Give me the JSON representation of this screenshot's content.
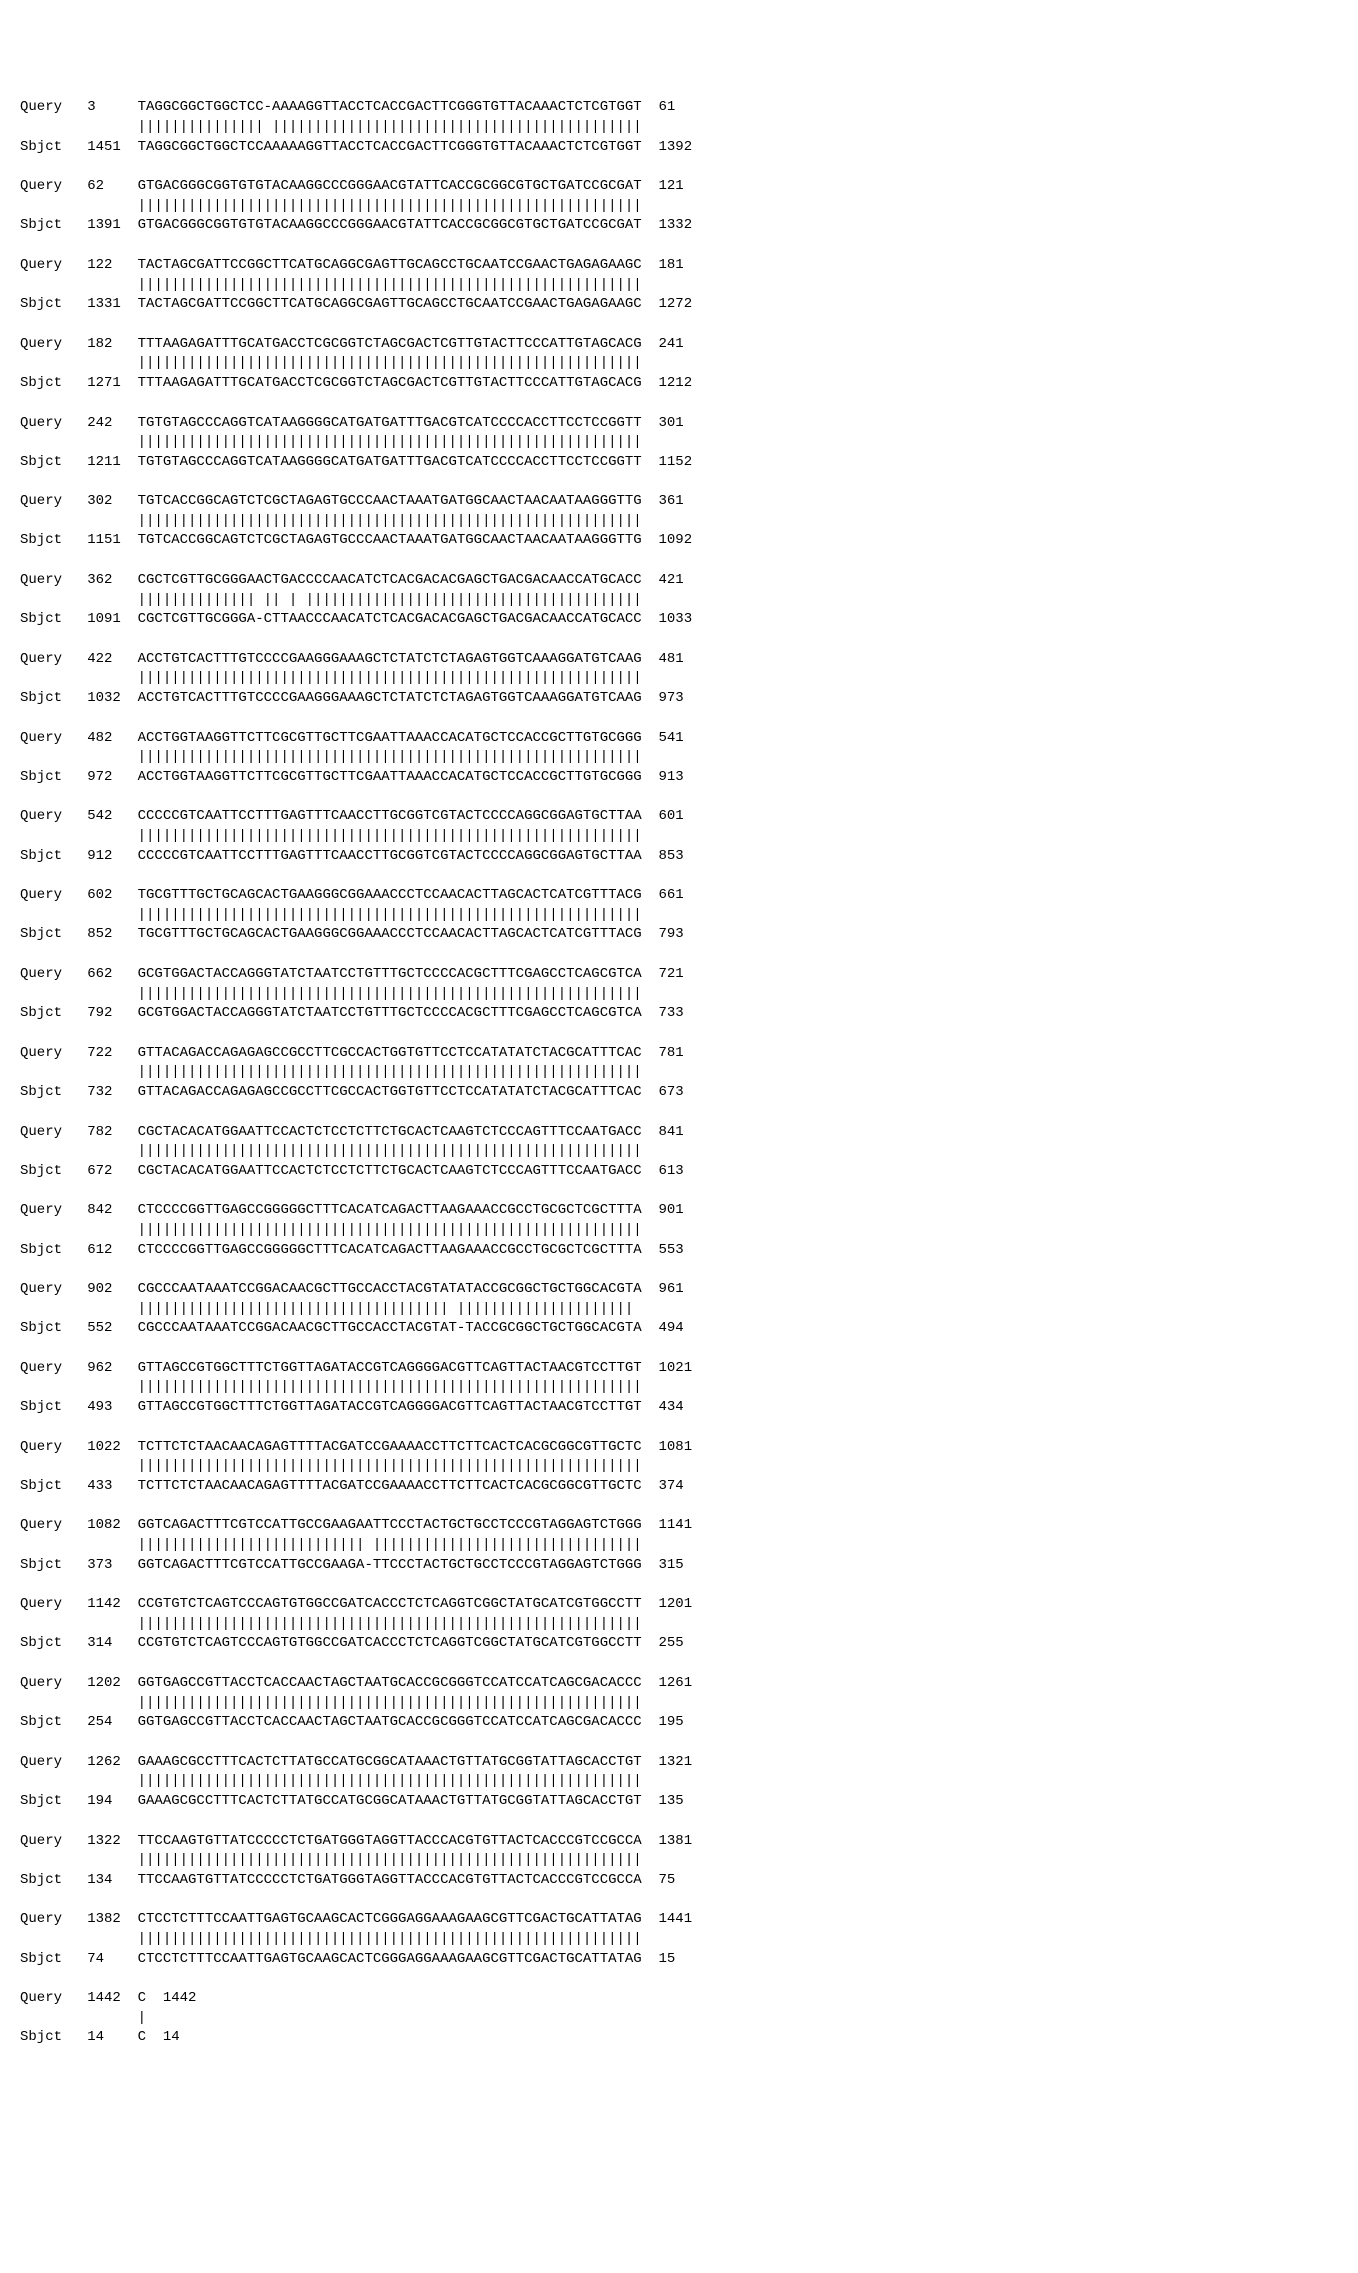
{
  "labels": {
    "query": "Query",
    "sbjct": "Sbjct"
  },
  "blocks": [
    {
      "query_start": 3,
      "query_seq": "TAGGCGGCTGGCTCC-AAAAGGTTACCTCACCGACTTCGGGTGTTACAAACTCTCGTGGT",
      "match": "||||||||||||||| ||||||||||||||||||||||||||||||||||||||||||||",
      "sbjct_seq": "TAGGCGGCTGGCTCCAAAAAGGTTACCTCACCGACTTCGGGTGTTACAAACTCTCGTGGT",
      "query_end": 61,
      "sbjct_start": 1451,
      "sbjct_end": 1392
    },
    {
      "query_start": 62,
      "query_seq": "GTGACGGGCGGTGTGTACAAGGCCCGGGAACGTATTCACCGCGGCGTGCTGATCCGCGAT",
      "match": "||||||||||||||||||||||||||||||||||||||||||||||||||||||||||||",
      "sbjct_seq": "GTGACGGGCGGTGTGTACAAGGCCCGGGAACGTATTCACCGCGGCGTGCTGATCCGCGAT",
      "query_end": 121,
      "sbjct_start": 1391,
      "sbjct_end": 1332
    },
    {
      "query_start": 122,
      "query_seq": "TACTAGCGATTCCGGCTTCATGCAGGCGAGTTGCAGCCTGCAATCCGAACTGAGAGAAGC",
      "match": "||||||||||||||||||||||||||||||||||||||||||||||||||||||||||||",
      "sbjct_seq": "TACTAGCGATTCCGGCTTCATGCAGGCGAGTTGCAGCCTGCAATCCGAACTGAGAGAAGC",
      "query_end": 181,
      "sbjct_start": 1331,
      "sbjct_end": 1272
    },
    {
      "query_start": 182,
      "query_seq": "TTTAAGAGATTTGCATGACCTCGCGGTCTAGCGACTCGTTGTACTTCCCATTGTAGCACG",
      "match": "||||||||||||||||||||||||||||||||||||||||||||||||||||||||||||",
      "sbjct_seq": "TTTAAGAGATTTGCATGACCTCGCGGTCTAGCGACTCGTTGTACTTCCCATTGTAGCACG",
      "query_end": 241,
      "sbjct_start": 1271,
      "sbjct_end": 1212
    },
    {
      "query_start": 242,
      "query_seq": "TGTGTAGCCCAGGTCATAAGGGGCATGATGATTTGACGTCATCCCCACCTTCCTCCGGTT",
      "match": "||||||||||||||||||||||||||||||||||||||||||||||||||||||||||||",
      "sbjct_seq": "TGTGTAGCCCAGGTCATAAGGGGCATGATGATTTGACGTCATCCCCACCTTCCTCCGGTT",
      "query_end": 301,
      "sbjct_start": 1211,
      "sbjct_end": 1152
    },
    {
      "query_start": 302,
      "query_seq": "TGTCACCGGCAGTCTCGCTAGAGTGCCCAACTAAATGATGGCAACTAACAATAAGGGTTG",
      "match": "||||||||||||||||||||||||||||||||||||||||||||||||||||||||||||",
      "sbjct_seq": "TGTCACCGGCAGTCTCGCTAGAGTGCCCAACTAAATGATGGCAACTAACAATAAGGGTTG",
      "query_end": 361,
      "sbjct_start": 1151,
      "sbjct_end": 1092
    },
    {
      "query_start": 362,
      "query_seq": "CGCTCGTTGCGGGAACTGACCCCAACATCTCACGACACGAGCTGACGACAACCATGCACC",
      "match": "|||||||||||||| || | ||||||||||||||||||||||||||||||||||||||||",
      "sbjct_seq": "CGCTCGTTGCGGGA-CTTAACCCAACATCTCACGACACGAGCTGACGACAACCATGCACC",
      "query_end": 421,
      "sbjct_start": 1091,
      "sbjct_end": 1033
    },
    {
      "query_start": 422,
      "query_seq": "ACCTGTCACTTTGTCCCCGAAGGGAAAGCTCTATCTCTAGAGTGGTCAAAGGATGTCAAG",
      "match": "||||||||||||||||||||||||||||||||||||||||||||||||||||||||||||",
      "sbjct_seq": "ACCTGTCACTTTGTCCCCGAAGGGAAAGCTCTATCTCTAGAGTGGTCAAAGGATGTCAAG",
      "query_end": 481,
      "sbjct_start": 1032,
      "sbjct_end": 973
    },
    {
      "query_start": 482,
      "query_seq": "ACCTGGTAAGGTTCTTCGCGTTGCTTCGAATTAAACCACATGCTCCACCGCTTGTGCGGG",
      "match": "||||||||||||||||||||||||||||||||||||||||||||||||||||||||||||",
      "sbjct_seq": "ACCTGGTAAGGTTCTTCGCGTTGCTTCGAATTAAACCACATGCTCCACCGCTTGTGCGGG",
      "query_end": 541,
      "sbjct_start": 972,
      "sbjct_end": 913
    },
    {
      "query_start": 542,
      "query_seq": "CCCCCGTCAATTCCTTTGAGTTTCAACCTTGCGGTCGTACTCCCCAGGCGGAGTGCTTAA",
      "match": "||||||||||||||||||||||||||||||||||||||||||||||||||||||||||||",
      "sbjct_seq": "CCCCCGTCAATTCCTTTGAGTTTCAACCTTGCGGTCGTACTCCCCAGGCGGAGTGCTTAA",
      "query_end": 601,
      "sbjct_start": 912,
      "sbjct_end": 853
    },
    {
      "query_start": 602,
      "query_seq": "TGCGTTTGCTGCAGCACTGAAGGGCGGAAACCCTCCAACACTTAGCACTCATCGTTTACG",
      "match": "||||||||||||||||||||||||||||||||||||||||||||||||||||||||||||",
      "sbjct_seq": "TGCGTTTGCTGCAGCACTGAAGGGCGGAAACCCTCCAACACTTAGCACTCATCGTTTACG",
      "query_end": 661,
      "sbjct_start": 852,
      "sbjct_end": 793
    },
    {
      "query_start": 662,
      "query_seq": "GCGTGGACTACCAGGGTATCTAATCCTGTTTGCTCCCCACGCTTTCGAGCCTCAGCGTCA",
      "match": "||||||||||||||||||||||||||||||||||||||||||||||||||||||||||||",
      "sbjct_seq": "GCGTGGACTACCAGGGTATCTAATCCTGTTTGCTCCCCACGCTTTCGAGCCTCAGCGTCA",
      "query_end": 721,
      "sbjct_start": 792,
      "sbjct_end": 733
    },
    {
      "query_start": 722,
      "query_seq": "GTTACAGACCAGAGAGCCGCCTTCGCCACTGGTGTTCCTCCATATATCTACGCATTTCAC",
      "match": "||||||||||||||||||||||||||||||||||||||||||||||||||||||||||||",
      "sbjct_seq": "GTTACAGACCAGAGAGCCGCCTTCGCCACTGGTGTTCCTCCATATATCTACGCATTTCAC",
      "query_end": 781,
      "sbjct_start": 732,
      "sbjct_end": 673
    },
    {
      "query_start": 782,
      "query_seq": "CGCTACACATGGAATTCCACTCTCCTCTTCTGCACTCAAGTCTCCCAGTTTCCAATGACC",
      "match": "||||||||||||||||||||||||||||||||||||||||||||||||||||||||||||",
      "sbjct_seq": "CGCTACACATGGAATTCCACTCTCCTCTTCTGCACTCAAGTCTCCCAGTTTCCAATGACC",
      "query_end": 841,
      "sbjct_start": 672,
      "sbjct_end": 613
    },
    {
      "query_start": 842,
      "query_seq": "CTCCCCGGTTGAGCCGGGGGCTTTCACATCAGACTTAAGAAACCGCCTGCGCTCGCTTTA",
      "match": "||||||||||||||||||||||||||||||||||||||||||||||||||||||||||||",
      "sbjct_seq": "CTCCCCGGTTGAGCCGGGGGCTTTCACATCAGACTTAAGAAACCGCCTGCGCTCGCTTTA",
      "query_end": 901,
      "sbjct_start": 612,
      "sbjct_end": 553
    },
    {
      "query_start": 902,
      "query_seq": "CGCCCAATAAATCCGGACAACGCTTGCCACCTACGTATATACCGCGGCTGCTGGCACGTA",
      "match": "||||||||||||||||||||||||||||||||||||| |||||||||||||||||||||",
      "sbjct_seq": "CGCCCAATAAATCCGGACAACGCTTGCCACCTACGTAT-TACCGCGGCTGCTGGCACGTA",
      "query_end": 961,
      "sbjct_start": 552,
      "sbjct_end": 494
    },
    {
      "query_start": 962,
      "query_seq": "GTTAGCCGTGGCTTTCTGGTTAGATACCGTCAGGGGACGTTCAGTTACTAACGTCCTTGT",
      "match": "||||||||||||||||||||||||||||||||||||||||||||||||||||||||||||",
      "sbjct_seq": "GTTAGCCGTGGCTTTCTGGTTAGATACCGTCAGGGGACGTTCAGTTACTAACGTCCTTGT",
      "query_end": 1021,
      "sbjct_start": 493,
      "sbjct_end": 434
    },
    {
      "query_start": 1022,
      "query_seq": "TCTTCTCTAACAACAGAGTTTTACGATCCGAAAACCTTCTTCACTCACGCGGCGTTGCTC",
      "match": "||||||||||||||||||||||||||||||||||||||||||||||||||||||||||||",
      "sbjct_seq": "TCTTCTCTAACAACAGAGTTTTACGATCCGAAAACCTTCTTCACTCACGCGGCGTTGCTC",
      "query_end": 1081,
      "sbjct_start": 433,
      "sbjct_end": 374
    },
    {
      "query_start": 1082,
      "query_seq": "GGTCAGACTTTCGTCCATTGCCGAAGAATTCCCTACTGCTGCCTCCCGTAGGAGTCTGGG",
      "match": "||||||||||||||||||||||||||| ||||||||||||||||||||||||||||||||",
      "sbjct_seq": "GGTCAGACTTTCGTCCATTGCCGAAGA-TTCCCTACTGCTGCCTCCCGTAGGAGTCTGGG",
      "query_end": 1141,
      "sbjct_start": 373,
      "sbjct_end": 315
    },
    {
      "query_start": 1142,
      "query_seq": "CCGTGTCTCAGTCCCAGTGTGGCCGATCACCCTCTCAGGTCGGCTATGCATCGTGGCCTT",
      "match": "||||||||||||||||||||||||||||||||||||||||||||||||||||||||||||",
      "sbjct_seq": "CCGTGTCTCAGTCCCAGTGTGGCCGATCACCCTCTCAGGTCGGCTATGCATCGTGGCCTT",
      "query_end": 1201,
      "sbjct_start": 314,
      "sbjct_end": 255
    },
    {
      "query_start": 1202,
      "query_seq": "GGTGAGCCGTTACCTCACCAACTAGCTAATGCACCGCGGGTCCATCCATCAGCGACACCC",
      "match": "||||||||||||||||||||||||||||||||||||||||||||||||||||||||||||",
      "sbjct_seq": "GGTGAGCCGTTACCTCACCAACTAGCTAATGCACCGCGGGTCCATCCATCAGCGACACCC",
      "query_end": 1261,
      "sbjct_start": 254,
      "sbjct_end": 195
    },
    {
      "query_start": 1262,
      "query_seq": "GAAAGCGCCTTTCACTCTTATGCCATGCGGCATAAACTGTTATGCGGTATTAGCACCTGT",
      "match": "||||||||||||||||||||||||||||||||||||||||||||||||||||||||||||",
      "sbjct_seq": "GAAAGCGCCTTTCACTCTTATGCCATGCGGCATAAACTGTTATGCGGTATTAGCACCTGT",
      "query_end": 1321,
      "sbjct_start": 194,
      "sbjct_end": 135
    },
    {
      "query_start": 1322,
      "query_seq": "TTCCAAGTGTTATCCCCCTCTGATGGGTAGGTTACCCACGTGTTACTCACCCGTCCGCCA",
      "match": "||||||||||||||||||||||||||||||||||||||||||||||||||||||||||||",
      "sbjct_seq": "TTCCAAGTGTTATCCCCCTCTGATGGGTAGGTTACCCACGTGTTACTCACCCGTCCGCCA",
      "query_end": 1381,
      "sbjct_start": 134,
      "sbjct_end": 75
    },
    {
      "query_start": 1382,
      "query_seq": "CTCCTCTTTCCAATTGAGTGCAAGCACTCGGGAGGAAAGAAGCGTTCGACTGCATTATAG",
      "match": "||||||||||||||||||||||||||||||||||||||||||||||||||||||||||||",
      "sbjct_seq": "CTCCTCTTTCCAATTGAGTGCAAGCACTCGGGAGGAAAGAAGCGTTCGACTGCATTATAG",
      "query_end": 1441,
      "sbjct_start": 74,
      "sbjct_end": 15
    },
    {
      "query_start": 1442,
      "query_seq": "C",
      "match": "|",
      "sbjct_seq": "C",
      "query_end": 1442,
      "sbjct_start": 14,
      "sbjct_end": 14
    }
  ],
  "layout": {
    "label_width": 8,
    "start_width": 6,
    "prefix_spaces": 14
  }
}
